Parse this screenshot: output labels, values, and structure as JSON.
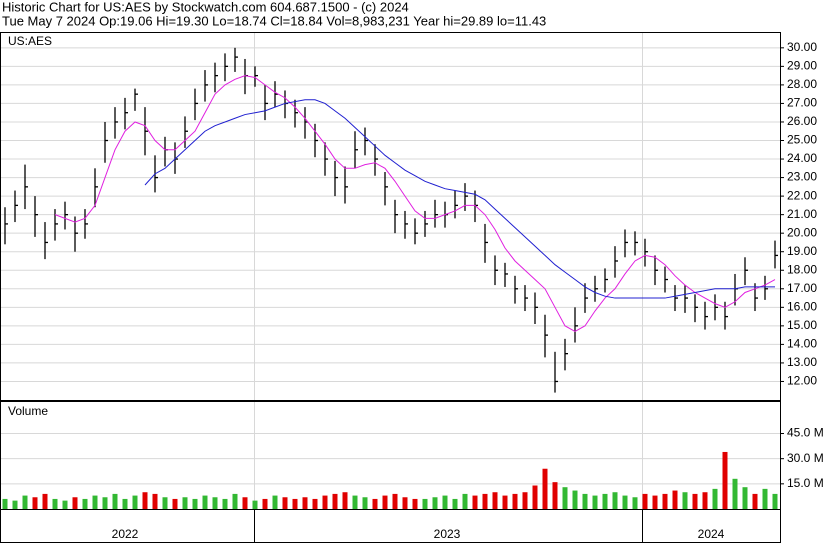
{
  "chart_data": {
    "type": "ohlc",
    "title": "Historic Chart for US:AES by Stockwatch.com 604.687.1500 - (c) 2024",
    "subtitle": "Tue May  7 2024  Op:19.06  Hi=19.30  Lo=18.74  Cl=18.84  Vol=8,983,231  Year hi=29.89  lo=11.43",
    "symbol": "US:AES",
    "bar_color": "#000000",
    "grid": true,
    "high": [
      21.4,
      22.3,
      23.7,
      22,
      20.6,
      21.3,
      21.7,
      20.9,
      21.3,
      23.5,
      26,
      26.8,
      27.3,
      27.8,
      26.8,
      24.2,
      25.2,
      24.9,
      26.3,
      27.8,
      28.8,
      29.2,
      29.7,
      30,
      29.4,
      29,
      28,
      28.2,
      27.7,
      27.2,
      26.8,
      25.9,
      24.9,
      23.9,
      23.6,
      25.5,
      25.7,
      24.8,
      23.3,
      21.8,
      21.2,
      20.8,
      21.2,
      21.8,
      21.7,
      22.3,
      22.7,
      22.3,
      20.5,
      18.8,
      18.4,
      17.7,
      17.2,
      16.8,
      15.6,
      13.6,
      14.3,
      16,
      17.3,
      17.7,
      18.1,
      19.3,
      20.2,
      20.1,
      19.7,
      18.8,
      18.2,
      17.2,
      17.2,
      16.7,
      16.3,
      16.7,
      16.3,
      17.8,
      18.7,
      17.3,
      17.7,
      19.6
    ],
    "low": [
      19.4,
      20.6,
      21.3,
      19.8,
      18.6,
      19.6,
      20.2,
      19,
      19.7,
      21.4,
      23.8,
      25.1,
      25.6,
      26.6,
      24.2,
      22.2,
      23.6,
      23.2,
      24.6,
      26.1,
      27.1,
      27.6,
      28.2,
      28.7,
      27.5,
      27.9,
      26.1,
      26.8,
      26.2,
      25.7,
      25.1,
      24.1,
      23.1,
      22,
      21.6,
      23.5,
      24.2,
      23.1,
      21.5,
      20,
      19.7,
      19.4,
      19.8,
      20.3,
      20.3,
      20.8,
      21.2,
      20.6,
      18.4,
      17.2,
      17.1,
      16.2,
      15.8,
      15.1,
      13.3,
      11.4,
      12.6,
      14.1,
      15.7,
      16.3,
      16.8,
      17.6,
      18.7,
      18.8,
      18.2,
      17.2,
      16.8,
      15.8,
      15.7,
      15.2,
      14.8,
      15.3,
      14.8,
      16.1,
      17.2,
      15.8,
      16.4,
      18.1
    ],
    "close": [
      20.5,
      21.5,
      22.5,
      21,
      19.5,
      20.5,
      21,
      20,
      20.5,
      22.5,
      25,
      26,
      26.5,
      27.5,
      25.5,
      23,
      24.5,
      24,
      25.5,
      27,
      28,
      28.5,
      29,
      29.5,
      28.5,
      28.5,
      27,
      27.5,
      27,
      26.5,
      26,
      25,
      24,
      23,
      22.5,
      24.5,
      25,
      24,
      22.5,
      21,
      20.5,
      20,
      20.5,
      21,
      21,
      21.5,
      22,
      21.5,
      19.5,
      18,
      17.8,
      17,
      16.5,
      16,
      14.5,
      12,
      13.5,
      15,
      16.5,
      17,
      17.5,
      18.5,
      19.5,
      19.5,
      19,
      18,
      17.5,
      16.5,
      16.5,
      16,
      15.5,
      16,
      15.5,
      17,
      18,
      16.5,
      17,
      18.8
    ],
    "moving_averages": [
      {
        "color": "#e020e0",
        "values": [
          null,
          null,
          null,
          null,
          null,
          21,
          20.8,
          20.6,
          20.8,
          21.5,
          23,
          24.5,
          25.5,
          26,
          25.8,
          25,
          24.5,
          24.5,
          25,
          25.5,
          26.5,
          27.5,
          28,
          28.3,
          28.5,
          28.4,
          28,
          27.6,
          27.3,
          26.8,
          26.2,
          25.5,
          24.8,
          24,
          23.5,
          23.5,
          23.7,
          23.8,
          23.5,
          22.8,
          22,
          21.2,
          20.8,
          20.8,
          21,
          21.2,
          21.5,
          21.5,
          21,
          20.2,
          19.2,
          18.5,
          18,
          17.5,
          17,
          16,
          15,
          14.7,
          15,
          15.8,
          16.5,
          17,
          17.8,
          18.5,
          18.8,
          18.7,
          18.3,
          17.7,
          17.2,
          16.8,
          16.5,
          16.2,
          16,
          16.3,
          16.8,
          17,
          17.2,
          17.5
        ]
      },
      {
        "color": "#2020d0",
        "values": [
          null,
          null,
          null,
          null,
          null,
          null,
          null,
          null,
          null,
          null,
          null,
          null,
          null,
          null,
          22.6,
          23.2,
          23.5,
          24,
          24.5,
          25,
          25.5,
          25.8,
          26,
          26.2,
          26.4,
          26.5,
          26.6,
          26.8,
          27,
          27.1,
          27.2,
          27.2,
          27,
          26.6,
          26.2,
          25.7,
          25.2,
          24.7,
          24.2,
          23.8,
          23.4,
          23.1,
          22.8,
          22.6,
          22.4,
          22.3,
          22.2,
          22.1,
          21.8,
          21.3,
          20.8,
          20.3,
          19.8,
          19.3,
          18.8,
          18.3,
          17.9,
          17.5,
          17.1,
          16.8,
          16.6,
          16.5,
          16.5,
          16.5,
          16.5,
          16.5,
          16.5,
          16.6,
          16.7,
          16.8,
          16.9,
          17,
          17,
          17,
          17.1,
          17.1,
          17.1,
          17.1
        ]
      }
    ],
    "ylim": [
      11,
      30.8
    ],
    "yticks": [
      {
        "value": 12,
        "label": "12.00"
      },
      {
        "value": 13,
        "label": "13.00"
      },
      {
        "value": 14,
        "label": "14.00"
      },
      {
        "value": 15,
        "label": "15.00"
      },
      {
        "value": 16,
        "label": "16.00"
      },
      {
        "value": 17,
        "label": "17.00"
      },
      {
        "value": 18,
        "label": "18.00"
      },
      {
        "value": 19,
        "label": "19.00"
      },
      {
        "value": 20,
        "label": "20.00"
      },
      {
        "value": 21,
        "label": "21.00"
      },
      {
        "value": 22,
        "label": "22.00"
      },
      {
        "value": 23,
        "label": "23.00"
      },
      {
        "value": 24,
        "label": "24.00"
      },
      {
        "value": 25,
        "label": "25.00"
      },
      {
        "value": 26,
        "label": "26.00"
      },
      {
        "value": 27,
        "label": "27.00"
      },
      {
        "value": 28,
        "label": "28.00"
      },
      {
        "value": 29,
        "label": "29.00"
      },
      {
        "value": 30,
        "label": "30.00"
      }
    ],
    "xticks": [
      {
        "value": 12,
        "label": "2022"
      },
      {
        "value": 44.2,
        "label": "2023"
      },
      {
        "value": 70.6,
        "label": "2024"
      }
    ],
    "volume": {
      "label": "Volume",
      "up_color": "#33b833",
      "down_color": "#e00000",
      "values": [
        6,
        5,
        8,
        7,
        9,
        6,
        5,
        7,
        6,
        8,
        7,
        9,
        6,
        8,
        10,
        9,
        7,
        6,
        7,
        6,
        8,
        7,
        6,
        9,
        7,
        5,
        6,
        8,
        7,
        6,
        7,
        6,
        8,
        9,
        10,
        8,
        7,
        6,
        8,
        9,
        7,
        6,
        6,
        7,
        8,
        6,
        9,
        8,
        9,
        10,
        8,
        9,
        10,
        14,
        24,
        16,
        13,
        11,
        9,
        8,
        9,
        10,
        8,
        7,
        9,
        8,
        9,
        11,
        10,
        9,
        10,
        12,
        34,
        18,
        13,
        9,
        12,
        9
      ],
      "ylim": [
        0,
        62
      ],
      "yticks": [
        {
          "value": 15,
          "label": "15.0 M"
        },
        {
          "value": 30,
          "label": "30.0 M"
        },
        {
          "value": 45,
          "label": "45.0 M"
        }
      ]
    }
  }
}
